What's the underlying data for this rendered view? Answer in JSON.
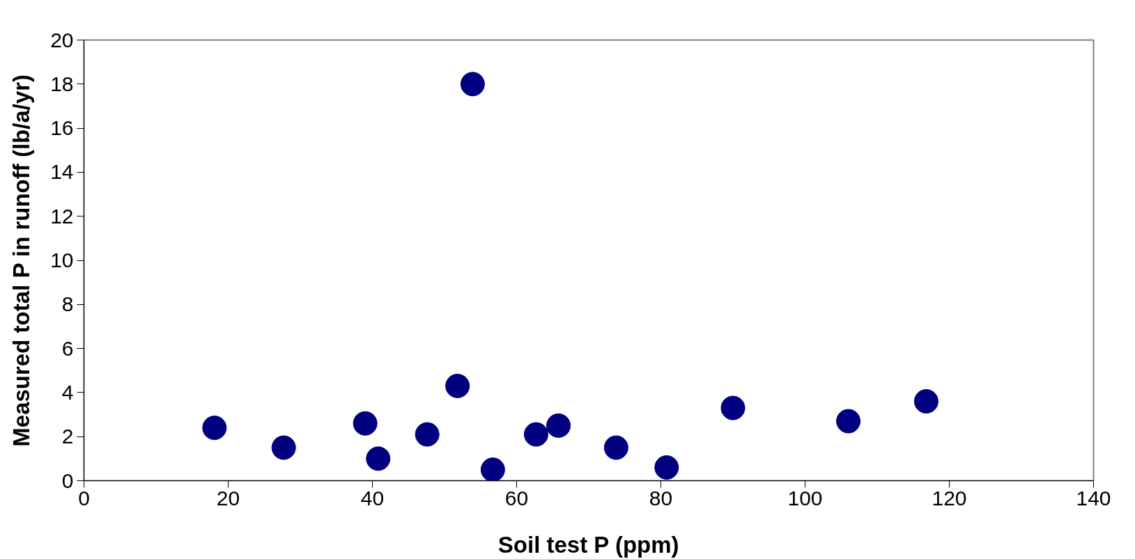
{
  "chart_data": {
    "type": "scatter",
    "xlabel": "Soil test P (ppm)",
    "ylabel": "Measured total P in runoff (lb/a/yr)",
    "x": [
      18.1,
      27.7,
      39.0,
      40.8,
      47.6,
      51.8,
      53.9,
      56.7,
      62.7,
      65.8,
      73.8,
      80.8,
      90.0,
      106.0,
      116.8
    ],
    "series": [
      {
        "color": "#000080",
        "values": [
          2.4,
          1.5,
          2.6,
          1.0,
          2.1,
          4.3,
          18.0,
          0.5,
          2.1,
          2.5,
          1.5,
          0.6,
          3.3,
          2.7,
          3.6
        ]
      }
    ],
    "xlim": [
      0,
      140
    ],
    "xticks": [
      0,
      20,
      40,
      60,
      80,
      100,
      120,
      140
    ],
    "ylim": [
      0,
      20
    ],
    "yticks": [
      0,
      2,
      4,
      6,
      8,
      10,
      12,
      14,
      16,
      18,
      20
    ],
    "marker": "circle"
  }
}
